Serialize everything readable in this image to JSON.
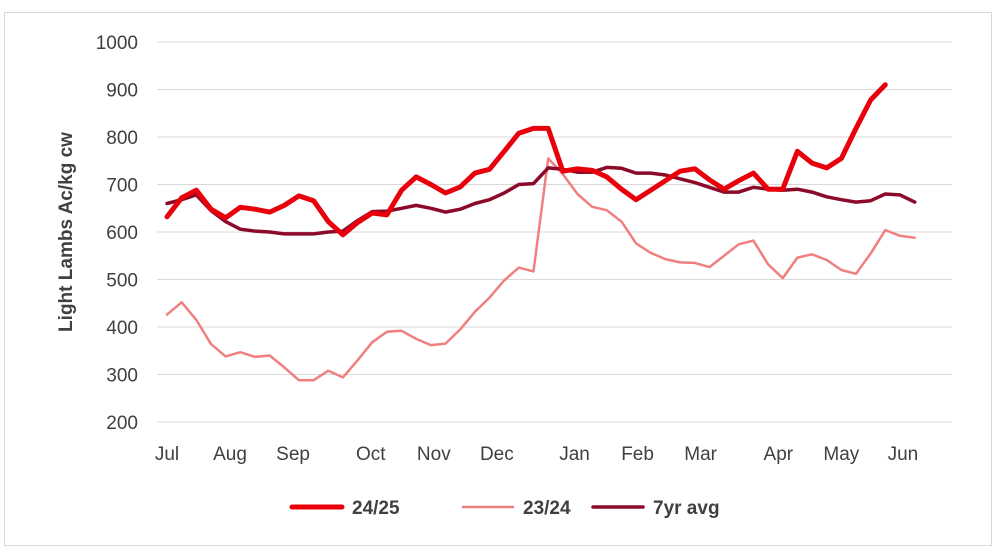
{
  "chart_data": {
    "type": "line",
    "ylabel": "Light Lambs Ac/kg cw",
    "xlabel": "",
    "ylim": [
      200,
      1000
    ],
    "yticks": [
      200,
      300,
      400,
      500,
      600,
      700,
      800,
      900,
      1000
    ],
    "grid": true,
    "legend_position": "bottom",
    "x_month_labels": [
      {
        "label": "Jul",
        "week": 0
      },
      {
        "label": "Aug",
        "week": 4.3
      },
      {
        "label": "Sep",
        "week": 8.6
      },
      {
        "label": "Oct",
        "week": 13.9
      },
      {
        "label": "Nov",
        "week": 18.2
      },
      {
        "label": "Dec",
        "week": 22.5
      },
      {
        "label": "Jan",
        "week": 27.8
      },
      {
        "label": "Feb",
        "week": 32.1
      },
      {
        "label": "Mar",
        "week": 36.4
      },
      {
        "label": "Apr",
        "week": 41.7
      },
      {
        "label": "May",
        "week": 46.0
      },
      {
        "label": "Jun",
        "week": 50.2
      }
    ],
    "series": [
      {
        "name": "24/25",
        "color": "#e8000b",
        "width": 5,
        "values": [
          632,
          672,
          688,
          648,
          630,
          652,
          648,
          642,
          656,
          676,
          666,
          622,
          594,
          620,
          640,
          636,
          688,
          716,
          700,
          682,
          695,
          724,
          732,
          770,
          808,
          818,
          818,
          728,
          733,
          730,
          716,
          690,
          668,
          688,
          708,
          728,
          733,
          710,
          690,
          708,
          724,
          690,
          690,
          770,
          745,
          735,
          755,
          818,
          878,
          910
        ]
      },
      {
        "name": "23/24",
        "color": "#f08080",
        "width": 2.5,
        "values": [
          426,
          452,
          415,
          364,
          338,
          347,
          337,
          340,
          315,
          288,
          288,
          308,
          294,
          330,
          368,
          390,
          392,
          375,
          362,
          365,
          395,
          432,
          462,
          498,
          525,
          517,
          755,
          722,
          680,
          653,
          646,
          622,
          576,
          556,
          543,
          536,
          535,
          526,
          550,
          574,
          582,
          532,
          503,
          546,
          553,
          541,
          520,
          512,
          555,
          604,
          592,
          588
        ]
      },
      {
        "name": "7yr avg",
        "color": "#8b0a2a",
        "width": 3.5,
        "values": [
          660,
          668,
          678,
          645,
          622,
          606,
          602,
          600,
          596,
          596,
          596,
          600,
          602,
          624,
          643,
          644,
          650,
          656,
          650,
          642,
          648,
          660,
          668,
          682,
          700,
          702,
          735,
          732,
          726,
          726,
          736,
          734,
          724,
          724,
          720,
          712,
          704,
          694,
          684,
          684,
          694,
          690,
          688,
          690,
          684,
          674,
          668,
          663,
          666,
          680,
          678,
          663
        ]
      }
    ]
  }
}
